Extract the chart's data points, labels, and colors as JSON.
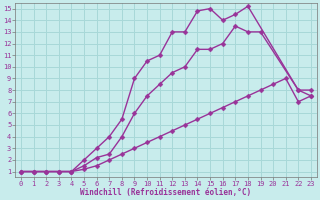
{
  "xlabel": "Windchill (Refroidissement éolien,°C)",
  "bg_color": "#c8ecec",
  "grid_color": "#a8d8d8",
  "line_color": "#993399",
  "xlim": [
    -0.5,
    23.5
  ],
  "ylim": [
    0.5,
    15.5
  ],
  "xticks": [
    0,
    1,
    2,
    3,
    4,
    5,
    6,
    7,
    8,
    9,
    10,
    11,
    12,
    13,
    14,
    15,
    16,
    17,
    18,
    19,
    20,
    21,
    22,
    23
  ],
  "yticks": [
    1,
    2,
    3,
    4,
    5,
    6,
    7,
    8,
    9,
    10,
    11,
    12,
    13,
    14,
    15
  ],
  "line1_x": [
    0,
    1,
    2,
    3,
    4,
    5,
    6,
    7,
    8,
    9,
    10,
    11,
    12,
    13,
    14,
    15,
    16,
    17,
    18,
    22,
    23
  ],
  "line1_y": [
    1,
    1,
    1,
    1,
    1,
    2.0,
    3.0,
    4.0,
    5.5,
    9.0,
    10.5,
    11.0,
    13.0,
    13.0,
    14.8,
    15.0,
    14.0,
    14.5,
    15.2,
    8.0,
    8.0
  ],
  "line2_x": [
    0,
    1,
    2,
    3,
    4,
    5,
    6,
    7,
    8,
    9,
    10,
    11,
    12,
    13,
    14,
    15,
    16,
    17,
    18,
    19,
    22,
    23
  ],
  "line2_y": [
    1,
    1,
    1,
    1,
    1,
    1.5,
    2.2,
    2.5,
    4.0,
    6.0,
    7.5,
    8.5,
    9.5,
    10.0,
    11.5,
    11.5,
    12.0,
    13.5,
    13.0,
    13.0,
    8.0,
    7.5
  ],
  "line3_x": [
    0,
    1,
    2,
    3,
    4,
    5,
    6,
    7,
    8,
    9,
    10,
    11,
    12,
    13,
    14,
    15,
    16,
    17,
    18,
    19,
    20,
    21,
    22,
    23
  ],
  "line3_y": [
    1,
    1,
    1,
    1,
    1,
    1.2,
    1.5,
    2.0,
    2.5,
    3.0,
    3.5,
    4.0,
    4.5,
    5.0,
    5.5,
    6.0,
    6.5,
    7.0,
    7.5,
    8.0,
    8.5,
    9.0,
    7.0,
    7.5
  ],
  "marker_size": 2.5,
  "line_width": 1.0,
  "tick_fontsize": 5.0,
  "label_fontsize": 5.5
}
